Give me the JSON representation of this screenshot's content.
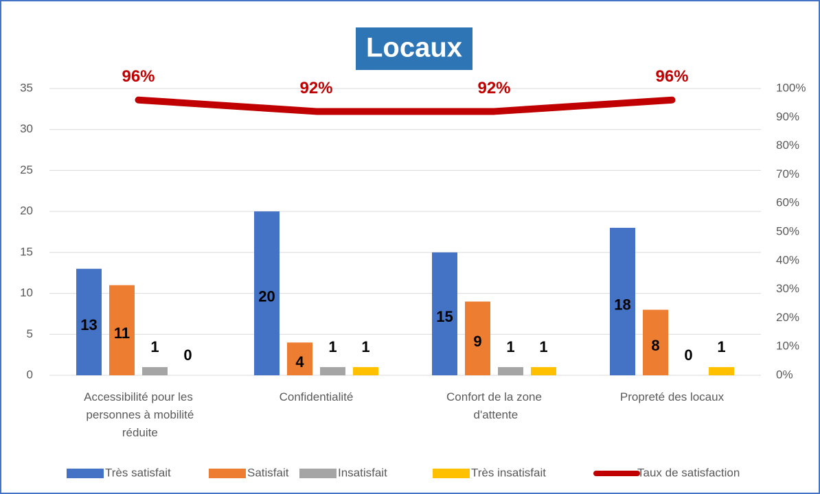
{
  "chart_data": {
    "type": "bar",
    "title": "Locaux",
    "categories": [
      "Accessibilité pour les personnes à mobilité réduite",
      "Confidentialité",
      "Confort de la zone d'attente",
      "Propreté des locaux"
    ],
    "series": [
      {
        "name": "Très satisfait",
        "color": "#4472c4",
        "values": [
          13,
          20,
          15,
          18
        ]
      },
      {
        "name": "Satisfait",
        "color": "#ed7d31",
        "values": [
          11,
          4,
          9,
          8
        ]
      },
      {
        "name": "Insatisfait",
        "color": "#a5a5a5",
        "values": [
          1,
          1,
          1,
          0
        ]
      },
      {
        "name": "Très insatisfait",
        "color": "#ffc000",
        "values": [
          0,
          1,
          1,
          1
        ]
      },
      {
        "name": "Taux de satisfaction",
        "color": "#c00000",
        "type": "line",
        "axis": "y2",
        "values": [
          96,
          92,
          92,
          96
        ],
        "value_labels": [
          "96%",
          "92%",
          "92%",
          "96%"
        ]
      }
    ],
    "ylim": [
      0,
      35
    ],
    "yticks": [
      0,
      5,
      10,
      15,
      20,
      25,
      30,
      35
    ],
    "y2lim": [
      0,
      100
    ],
    "y2ticks": [
      {
        "value": 0,
        "label": "0%"
      },
      {
        "value": 10,
        "label": "10%"
      },
      {
        "value": 20,
        "label": "20%"
      },
      {
        "value": 30,
        "label": "30%"
      },
      {
        "value": 40,
        "label": "40%"
      },
      {
        "value": 50,
        "label": "50%"
      },
      {
        "value": 60,
        "label": "60%"
      },
      {
        "value": 70,
        "label": "70%"
      },
      {
        "value": 80,
        "label": "80%"
      },
      {
        "value": 90,
        "label": "90%"
      },
      {
        "value": 100,
        "label": "100%"
      }
    ],
    "grid": true,
    "legend": "bottom"
  }
}
